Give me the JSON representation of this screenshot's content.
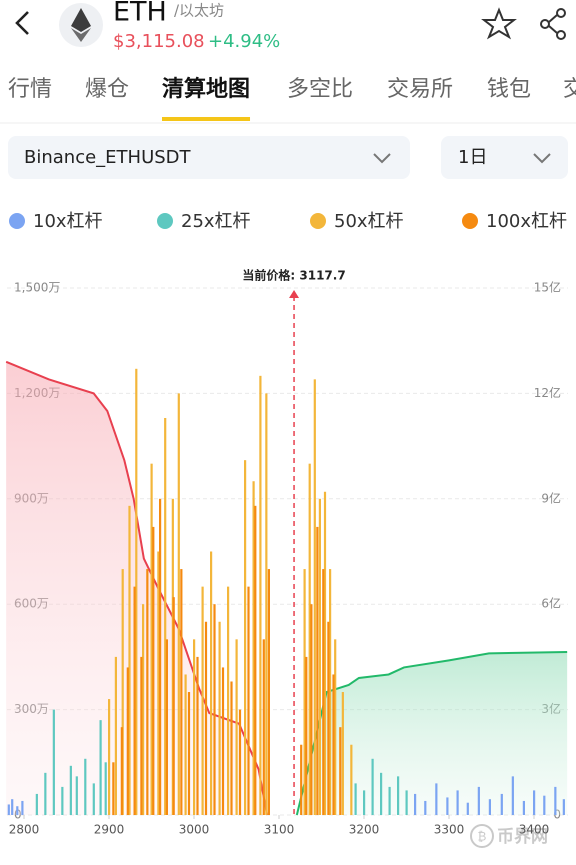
{
  "header": {
    "symbol": "ETH",
    "name": "/以太坊",
    "price": "$3,115.08",
    "change": "+4.94%"
  },
  "tabs": [
    "行情",
    "爆仓",
    "清算地图",
    "多空比",
    "交易所",
    "钱包",
    "交"
  ],
  "active_tab": 2,
  "selectors": {
    "pair": "Binance_ETHUSDT",
    "period": "1日"
  },
  "watermark": "币界网",
  "chart_data": {
    "type": "liquidation-map",
    "annotation": "当前价格: 3117.7",
    "current_price": 3117.7,
    "xlim": [
      2780,
      3440
    ],
    "xticks": [
      2800,
      2900,
      3000,
      3100,
      3200,
      3300,
      3400
    ],
    "ylim": [
      0,
      1500
    ],
    "yticks": [
      0,
      {
        "value": 300,
        "label": "300万"
      },
      {
        "value": 600,
        "label": "600万"
      },
      {
        "value": 900,
        "label": "900万"
      },
      {
        "value": 1200,
        "label": "1,200万"
      },
      {
        "value": 1500,
        "label": "1,500万"
      }
    ],
    "y2lim": [
      0,
      15
    ],
    "y2ticks": [
      0,
      {
        "value": 3,
        "label": "3亿"
      },
      {
        "value": 6,
        "label": "6亿"
      },
      {
        "value": 9,
        "label": "9亿"
      },
      {
        "value": 12,
        "label": "12亿"
      },
      {
        "value": 15,
        "label": "15亿"
      }
    ],
    "grid": true,
    "series": [
      {
        "name": "10x杠杆",
        "color": "#7ba4f2",
        "x": [
          2782,
          2786,
          2792,
          2798,
          3260,
          3272,
          3285,
          3298,
          3310,
          3322,
          3335,
          3348,
          3362,
          3375,
          3388,
          3400,
          3412,
          3425,
          3435
        ],
        "values": [
          30,
          45,
          25,
          40,
          60,
          40,
          90,
          50,
          70,
          35,
          80,
          45,
          60,
          110,
          40,
          70,
          55,
          80,
          45
        ]
      },
      {
        "name": "25x杠杆",
        "color": "#5ec8c0",
        "x": [
          2815,
          2825,
          2835,
          2845,
          2855,
          2862,
          2872,
          2882,
          2890,
          2896,
          3190,
          3200,
          3210,
          3220,
          3230,
          3240,
          3250
        ],
        "values": [
          60,
          120,
          300,
          80,
          140,
          110,
          160,
          90,
          270,
          150,
          90,
          70,
          160,
          120,
          80,
          110,
          70
        ]
      },
      {
        "name": "50x杠杆",
        "color": "#f3b63a",
        "x": [
          2900,
          2908,
          2916,
          2924,
          2932,
          2940,
          2950,
          2958,
          2966,
          2975,
          2982,
          2990,
          3000,
          3010,
          3020,
          3030,
          3040,
          3050,
          3060,
          3070,
          3078,
          3085,
          3130,
          3136,
          3142,
          3148,
          3154,
          3160,
          3166,
          3175,
          3185
        ],
        "values": [
          330,
          450,
          700,
          880,
          1270,
          600,
          1000,
          750,
          1130,
          900,
          1200,
          400,
          500,
          650,
          750,
          550,
          650,
          500,
          1010,
          950,
          1250,
          1200,
          700,
          1000,
          1240,
          900,
          920,
          700,
          500,
          350,
          200
        ]
      },
      {
        "name": "100x杠杆",
        "color": "#f58a10",
        "x": [
          2905,
          2915,
          2922,
          2930,
          2938,
          2945,
          2952,
          2960,
          2968,
          2976,
          2985,
          2994,
          3004,
          3014,
          3024,
          3034,
          3044,
          3054,
          3064,
          3072,
          3082,
          3088,
          3126,
          3132,
          3138,
          3145,
          3152,
          3158,
          3164,
          3172
        ],
        "values": [
          150,
          250,
          420,
          650,
          450,
          700,
          820,
          900,
          500,
          620,
          700,
          350,
          450,
          550,
          600,
          420,
          380,
          300,
          650,
          880,
          500,
          700,
          200,
          450,
          600,
          820,
          700,
          550,
          400,
          250
        ]
      }
    ],
    "curves": [
      {
        "color": "#e8404f",
        "axis": "y2",
        "x": [
          2779,
          2829,
          2882,
          2898,
          2918,
          2929,
          2941,
          2959,
          2982,
          3006,
          3018,
          3053,
          3076,
          3086
        ],
        "values": [
          12.9,
          12.4,
          12.0,
          11.5,
          10.1,
          9.0,
          7.3,
          6.4,
          5.3,
          3.6,
          2.9,
          2.6,
          1.3,
          0
        ]
      },
      {
        "color": "#22b96a",
        "axis": "y2",
        "x": [
          3121,
          3141,
          3156,
          3182,
          3194,
          3229,
          3247,
          3300,
          3347,
          3439
        ],
        "values": [
          0,
          2.0,
          3.5,
          3.7,
          3.9,
          4.0,
          4.2,
          4.4,
          4.6,
          4.64
        ]
      }
    ]
  }
}
